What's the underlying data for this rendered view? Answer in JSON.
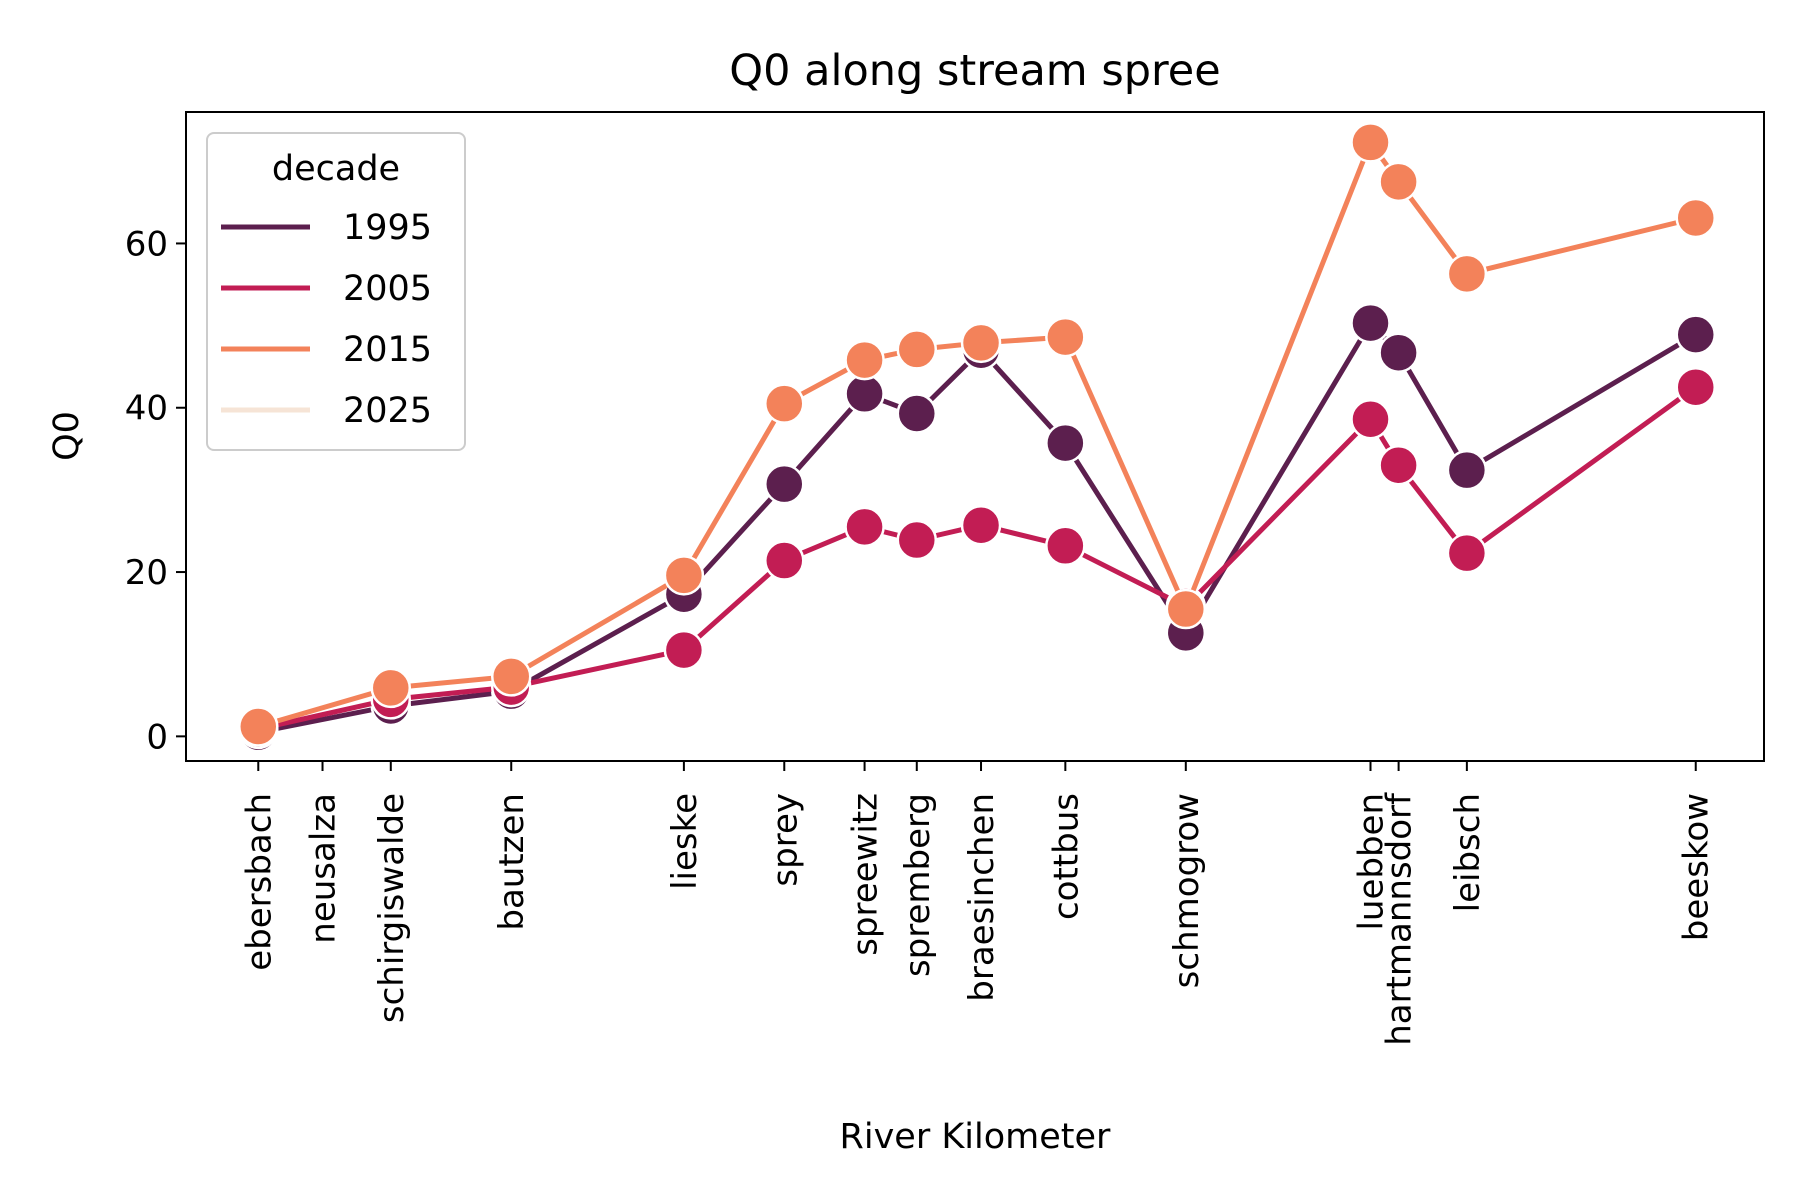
{
  "chart_data": {
    "type": "line",
    "title": "Q0 along stream spree",
    "xlabel": "River Kilometer",
    "ylabel": "Q0",
    "yticks": [
      0,
      20,
      40,
      60
    ],
    "ylim": [
      -3,
      76
    ],
    "xlim": [
      -5,
      388
    ],
    "grid": false,
    "legend": {
      "title": "decade",
      "placement": "top-left"
    },
    "stations": [
      {
        "name": "ebersbach",
        "x": 13
      },
      {
        "name": "neusalza",
        "x": 29
      },
      {
        "name": "schirgiswalde",
        "x": 46
      },
      {
        "name": "bautzen",
        "x": 76
      },
      {
        "name": "lieske",
        "x": 119
      },
      {
        "name": "sprey",
        "x": 144
      },
      {
        "name": "spreewitz",
        "x": 164
      },
      {
        "name": "spremberg",
        "x": 177
      },
      {
        "name": "braesinchen",
        "x": 193
      },
      {
        "name": "cottbus",
        "x": 214
      },
      {
        "name": "schmogrow",
        "x": 244
      },
      {
        "name": "luebben",
        "x": 290
      },
      {
        "name": "hartmannsdorf",
        "x": 297
      },
      {
        "name": "leibsch",
        "x": 314
      },
      {
        "name": "beeskow",
        "x": 371
      }
    ],
    "series": [
      {
        "name": "1995",
        "color": "#5c1f4e",
        "points": [
          {
            "station": "ebersbach",
            "x": 13,
            "y": 0.5
          },
          {
            "station": "schirgiswalde",
            "x": 46,
            "y": 3.7
          },
          {
            "station": "bautzen",
            "x": 76,
            "y": 5.5
          },
          {
            "station": "lieske",
            "x": 119,
            "y": 17.3
          },
          {
            "station": "sprey",
            "x": 144,
            "y": 30.7
          },
          {
            "station": "spreewitz",
            "x": 164,
            "y": 41.7
          },
          {
            "station": "spremberg",
            "x": 177,
            "y": 39.3
          },
          {
            "station": "braesinchen",
            "x": 193,
            "y": 47.0
          },
          {
            "station": "cottbus",
            "x": 214,
            "y": 35.7
          },
          {
            "station": "schmogrow",
            "x": 244,
            "y": 12.6
          },
          {
            "station": "luebben",
            "x": 290,
            "y": 50.3
          },
          {
            "station": "hartmannsdorf",
            "x": 297,
            "y": 46.7
          },
          {
            "station": "leibsch",
            "x": 314,
            "y": 32.4
          },
          {
            "station": "beeskow",
            "x": 371,
            "y": 48.9
          }
        ]
      },
      {
        "name": "2005",
        "color": "#c21d54",
        "points": [
          {
            "station": "ebersbach",
            "x": 13,
            "y": 0.9
          },
          {
            "station": "schirgiswalde",
            "x": 46,
            "y": 4.5
          },
          {
            "station": "bautzen",
            "x": 76,
            "y": 6.0
          },
          {
            "station": "lieske",
            "x": 119,
            "y": 10.5
          },
          {
            "station": "sprey",
            "x": 144,
            "y": 21.4
          },
          {
            "station": "spreewitz",
            "x": 164,
            "y": 25.5
          },
          {
            "station": "spremberg",
            "x": 177,
            "y": 23.9
          },
          {
            "station": "braesinchen",
            "x": 193,
            "y": 25.7
          },
          {
            "station": "cottbus",
            "x": 214,
            "y": 23.2
          },
          {
            "station": "schmogrow",
            "x": 244,
            "y": 15.8
          },
          {
            "station": "luebben",
            "x": 290,
            "y": 38.6
          },
          {
            "station": "hartmannsdorf",
            "x": 297,
            "y": 33.0
          },
          {
            "station": "leibsch",
            "x": 314,
            "y": 22.3
          },
          {
            "station": "beeskow",
            "x": 371,
            "y": 42.5
          }
        ]
      },
      {
        "name": "2015",
        "color": "#f3825a",
        "points": [
          {
            "station": "ebersbach",
            "x": 13,
            "y": 1.2
          },
          {
            "station": "schirgiswalde",
            "x": 46,
            "y": 5.9
          },
          {
            "station": "bautzen",
            "x": 76,
            "y": 7.3
          },
          {
            "station": "lieske",
            "x": 119,
            "y": 19.6
          },
          {
            "station": "sprey",
            "x": 144,
            "y": 40.5
          },
          {
            "station": "spreewitz",
            "x": 164,
            "y": 45.8
          },
          {
            "station": "spremberg",
            "x": 177,
            "y": 47.1
          },
          {
            "station": "braesinchen",
            "x": 193,
            "y": 47.9
          },
          {
            "station": "cottbus",
            "x": 214,
            "y": 48.6
          },
          {
            "station": "schmogrow",
            "x": 244,
            "y": 15.5
          },
          {
            "station": "luebben",
            "x": 290,
            "y": 72.3
          },
          {
            "station": "hartmannsdorf",
            "x": 297,
            "y": 67.5
          },
          {
            "station": "leibsch",
            "x": 314,
            "y": 56.3
          },
          {
            "station": "beeskow",
            "x": 371,
            "y": 63.1
          }
        ]
      },
      {
        "name": "2025",
        "color": "#f6e4d6",
        "points": []
      }
    ]
  }
}
